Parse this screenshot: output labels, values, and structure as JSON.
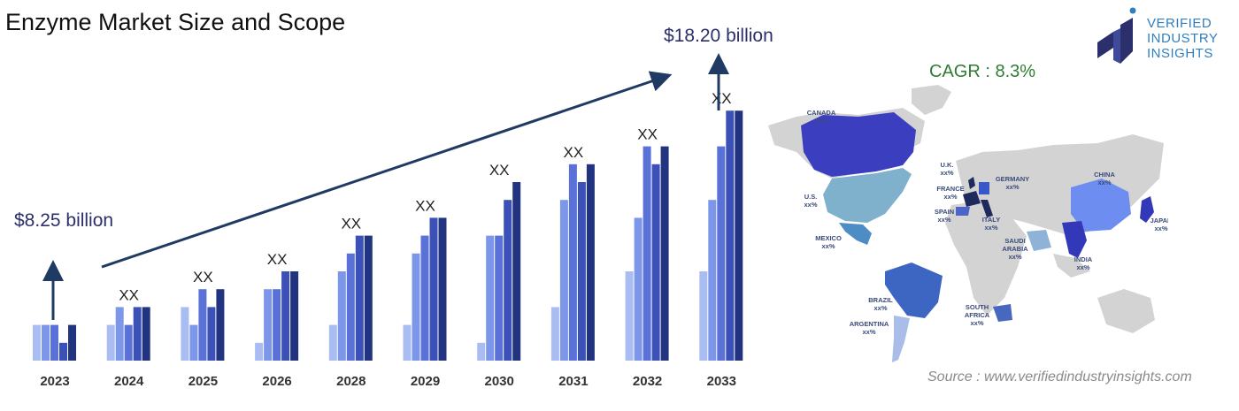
{
  "header": {
    "title": "Enzyme Market Size and Scope",
    "cagr": "CAGR : 8.3%",
    "source": "Source : www.verifiedindustryinsights.com"
  },
  "logo": {
    "line1": "VERIFIED",
    "line2": "INDUSTRY",
    "line3": "INSIGHTS"
  },
  "colors": {
    "bar_shades": [
      "#a9bdf2",
      "#7c97ea",
      "#5a72d8",
      "#3b51b8",
      "#22347f"
    ],
    "arrow": "#1f3b63",
    "map_base": "#d3d3d3"
  },
  "chart_data": {
    "type": "bar",
    "title": "Enzyme Market Size and Scope",
    "categories": [
      "2023",
      "2024",
      "2025",
      "2026",
      "2028",
      "2029",
      "2030",
      "2031",
      "2032",
      "2033"
    ],
    "bar_labels": [
      "",
      "XX",
      "XX",
      "XX",
      "XX",
      "XX",
      "XX",
      "XX",
      "XX",
      "XX"
    ],
    "start_value_label": "$8.25 billion",
    "end_value_label": "$18.20 billion",
    "relative_heights": [
      [
        2,
        2,
        2,
        1,
        2
      ],
      [
        2,
        3,
        2,
        3,
        3
      ],
      [
        3,
        2,
        4,
        3,
        4
      ],
      [
        1,
        4,
        4,
        5,
        5
      ],
      [
        2,
        5,
        6,
        7,
        7
      ],
      [
        2,
        6,
        7,
        8,
        8
      ],
      [
        1,
        7,
        7,
        9,
        10
      ],
      [
        3,
        9,
        11,
        10,
        11
      ],
      [
        5,
        8,
        12,
        11,
        12
      ],
      [
        5,
        9,
        12,
        14,
        14
      ]
    ]
  },
  "map": {
    "regions": [
      {
        "name": "CANADA",
        "value": "xx%"
      },
      {
        "name": "U.S.",
        "value": "xx%"
      },
      {
        "name": "MEXICO",
        "value": "xx%"
      },
      {
        "name": "BRAZIL",
        "value": "xx%"
      },
      {
        "name": "ARGENTINA",
        "value": "xx%"
      },
      {
        "name": "U.K.",
        "value": "xx%"
      },
      {
        "name": "FRANCE",
        "value": "xx%"
      },
      {
        "name": "SPAIN",
        "value": "xx%"
      },
      {
        "name": "GERMANY",
        "value": "xx%"
      },
      {
        "name": "ITALY",
        "value": "xx%"
      },
      {
        "name": "SAUDI",
        "value": "ARABIA"
      },
      {
        "name": "SOUTH",
        "value": "AFRICA"
      },
      {
        "name": "CHINA",
        "value": "xx%"
      },
      {
        "name": "INDIA",
        "value": "xx%"
      },
      {
        "name": "JAPAN",
        "value": "xx%"
      }
    ],
    "extra_values": {
      "saudi": "xx%",
      "south_africa": "xx%"
    }
  }
}
